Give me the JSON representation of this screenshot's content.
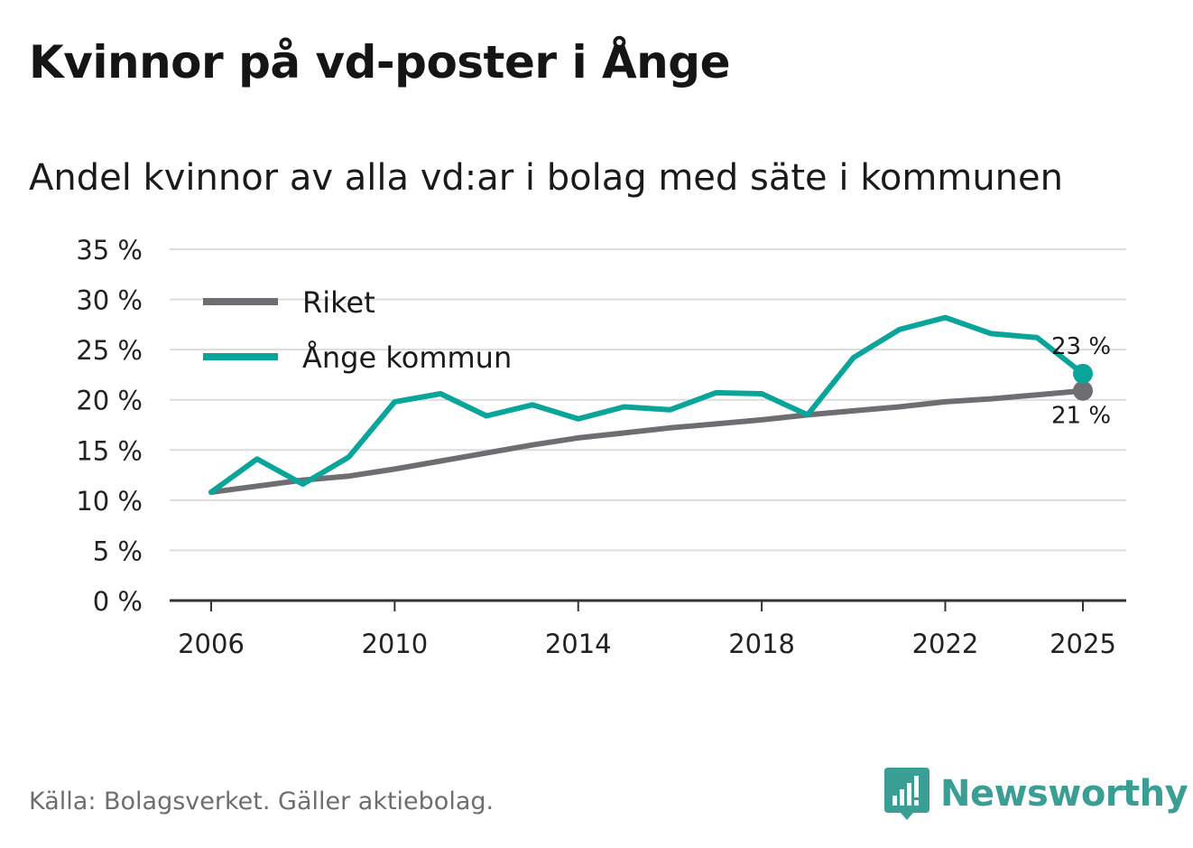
{
  "header": {
    "title": "Kvinnor på vd-poster i Ånge",
    "subtitle": "Andel kvinnor av alla vd:ar i bolag med säte i kommunen"
  },
  "footer": {
    "source": "Källa: Bolagsverket. Gäller aktiebolag.",
    "brand": "Newsworthy",
    "brand_icon": "bar-chart-badge-icon"
  },
  "colors": {
    "riket": "#6e6d72",
    "ange": "#0aa59a",
    "grid": "#dcdcdc",
    "axis": "#333333",
    "brand": "#3a9e94"
  },
  "chart_data": {
    "type": "line",
    "title": "Kvinnor på vd-poster i Ånge",
    "subtitle": "Andel kvinnor av alla vd:ar i bolag med säte i kommunen",
    "xlabel": "",
    "ylabel": "",
    "x": [
      2006,
      2007,
      2008,
      2009,
      2010,
      2011,
      2012,
      2013,
      2014,
      2015,
      2016,
      2017,
      2018,
      2019,
      2020,
      2021,
      2022,
      2023,
      2024,
      2025
    ],
    "series": [
      {
        "name": "Riket",
        "values": [
          10.8,
          11.4,
          12.0,
          12.4,
          13.1,
          13.9,
          14.7,
          15.5,
          16.2,
          16.7,
          17.2,
          17.6,
          18.0,
          18.5,
          18.9,
          19.3,
          19.8,
          20.1,
          20.5,
          20.9
        ]
      },
      {
        "name": "Ånge kommun",
        "values": [
          10.8,
          14.1,
          11.6,
          14.3,
          19.8,
          20.6,
          18.4,
          19.5,
          18.1,
          19.3,
          19.0,
          20.7,
          20.6,
          18.5,
          24.2,
          27.0,
          28.2,
          26.6,
          26.2,
          22.6
        ]
      }
    ],
    "end_labels": [
      {
        "series": "Ånge kommun",
        "text": "23 %"
      },
      {
        "series": "Riket",
        "text": "21 %"
      }
    ],
    "y_ticks": [
      0,
      5,
      10,
      15,
      20,
      25,
      30,
      35
    ],
    "y_tick_labels": [
      "0 %",
      "5 %",
      "10 %",
      "15 %",
      "20 %",
      "25 %",
      "30 %",
      "35 %"
    ],
    "x_ticks": [
      2006,
      2010,
      2014,
      2018,
      2022,
      2025
    ],
    "x_tick_labels": [
      "2006",
      "2010",
      "2014",
      "2018",
      "2022",
      "2025"
    ],
    "ylim": [
      0,
      35
    ],
    "xlim": [
      2006,
      2025
    ],
    "grid": true,
    "legend_position": "top-left"
  }
}
